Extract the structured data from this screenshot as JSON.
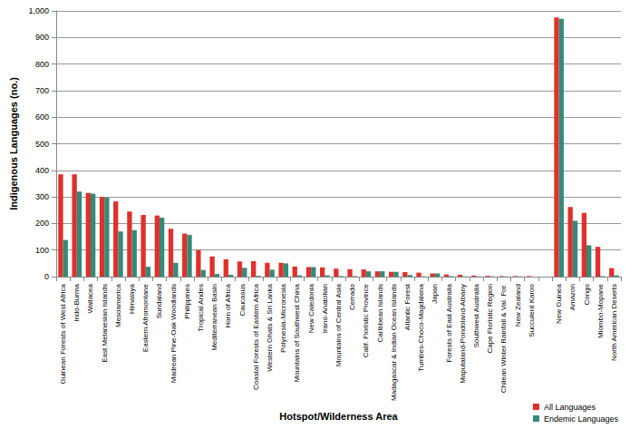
{
  "chart_data": {
    "type": "bar",
    "x_label": "Hotspot/Wilderness Area",
    "y_label": "Indigenous Languages (no.)",
    "categories": [
      "Guinean Forests of West Africa",
      "Indo-Burma",
      "Wallacea",
      "East Melanesian Islands",
      "Mesoamerica",
      "Himalaya",
      "Eastern Afromontane",
      "Sundaland",
      "Madrean Pine-Oak Woodlands",
      "Philippines",
      "Tropical Andes",
      "Mediterranean Basin",
      "Horn of Africa",
      "Caucasus",
      "Coastal Forests of Eastern Africa",
      "Western Ghats & Sri Lanka",
      "Polynesia-Micronesia",
      "Mountains of Southwest China",
      "New Caledonia",
      "Irano-Anatolian",
      "Mountains of Central Asia",
      "Cerrado",
      "Calif. Floristic Province",
      "Caribbean Islands",
      "Madagascar & Indian Ocean Islands",
      "Atlantic Forest",
      "Tumbes-Choco-Magdalena",
      "Japan",
      "Forests of East Australia",
      "Maputaland-Pondoland-Albany",
      "Southwest Australia",
      "Cape Floristic Region",
      "Chilean Winter Rainfall & Val. For.",
      "New Zealand",
      "Succulent Karoo",
      null,
      "New Guinea",
      "Amazon",
      "Congo",
      "Miombo-Mopane",
      "North American Deserts"
    ],
    "series": [
      {
        "name": "All Languages",
        "color": "#e0302b",
        "values": [
          385,
          385,
          315,
          300,
          283,
          245,
          232,
          230,
          180,
          162,
          100,
          76,
          65,
          57,
          58,
          52,
          52,
          38,
          36,
          35,
          30,
          28,
          27,
          20,
          18,
          17,
          15,
          12,
          8,
          7,
          4,
          3,
          2,
          2,
          2,
          null,
          975,
          262,
          240,
          112,
          32
        ]
      },
      {
        "name": "Endemic Languages",
        "color": "#358a78",
        "values": [
          138,
          320,
          312,
          298,
          170,
          175,
          37,
          222,
          52,
          157,
          25,
          10,
          7,
          33,
          3,
          26,
          50,
          5,
          36,
          5,
          2,
          2,
          20,
          20,
          18,
          6,
          1,
          12,
          2,
          1,
          1,
          1,
          1,
          1,
          0,
          null,
          970,
          210,
          118,
          2,
          5
        ]
      }
    ],
    "ylim": [
      0,
      1000
    ],
    "yticks": [
      0,
      100,
      200,
      300,
      400,
      500,
      600,
      700,
      800,
      900,
      1000
    ],
    "grid": true,
    "legend": "lower right"
  }
}
